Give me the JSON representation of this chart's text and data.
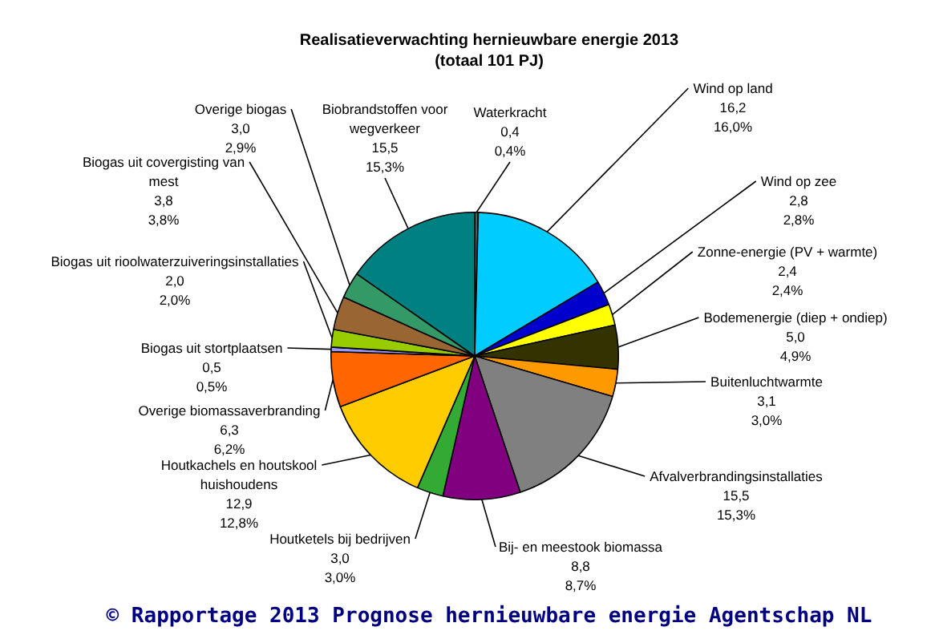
{
  "chart_data": {
    "type": "pie",
    "title": "Realisatieverwachting hernieuwbare energie 2013",
    "subtitle": "(totaal 101 PJ)",
    "categories": [
      "Waterkracht",
      "Wind op land",
      "Wind op zee",
      "Zonne-energie (PV + warmte)",
      "Bodemenergie (diep + ondiep)",
      "Buitenluchtwarmte",
      "Afvalverbrandingsinstallaties",
      "Bij- en meestook biomassa",
      "Houtketels bij bedrijven",
      "Houtkachels en houtskool huishoudens",
      "Overige biomassaverbranding",
      "Biogas uit stortplaatsen",
      "Biogas uit rioolwaterzuiveringsinstallaties",
      "Biogas uit covergisting van mest",
      "Overige biogas",
      "Biobrandstoffen voor wegverkeer"
    ],
    "values": [
      0.4,
      16.2,
      2.8,
      2.4,
      5.0,
      3.1,
      15.5,
      8.8,
      3.0,
      12.9,
      6.3,
      0.5,
      2.0,
      3.8,
      3.0,
      15.5
    ],
    "value_labels": [
      "0,4\n0,4%",
      "16,2\n16,0%",
      "2,8\n2,8%",
      "2,4\n2,4%",
      "5,0\n4,9%",
      "3,1\n3,0%",
      "15,5\n15,3%",
      "8,8\n8,7%",
      "3,0\n3,0%",
      "12,9\n12,8%",
      "6,3\n6,2%",
      "0,5\n0,5%",
      "2,0\n2,0%",
      "3,8\n3,8%",
      "3,0\n2,9%",
      "15,5\n15,3%"
    ],
    "colors": [
      "#336666",
      "#00ccff",
      "#0000cc",
      "#ffff00",
      "#333300",
      "#ff9900",
      "#808080",
      "#800080",
      "#33aa33",
      "#ffcc00",
      "#ff6600",
      "#9999ff",
      "#99cc00",
      "#996633",
      "#339966",
      "#008080"
    ],
    "annotations": [
      "© Rapportage 2013 Prognose hernieuwbare energie Agentschap NL"
    ],
    "legend": false
  }
}
